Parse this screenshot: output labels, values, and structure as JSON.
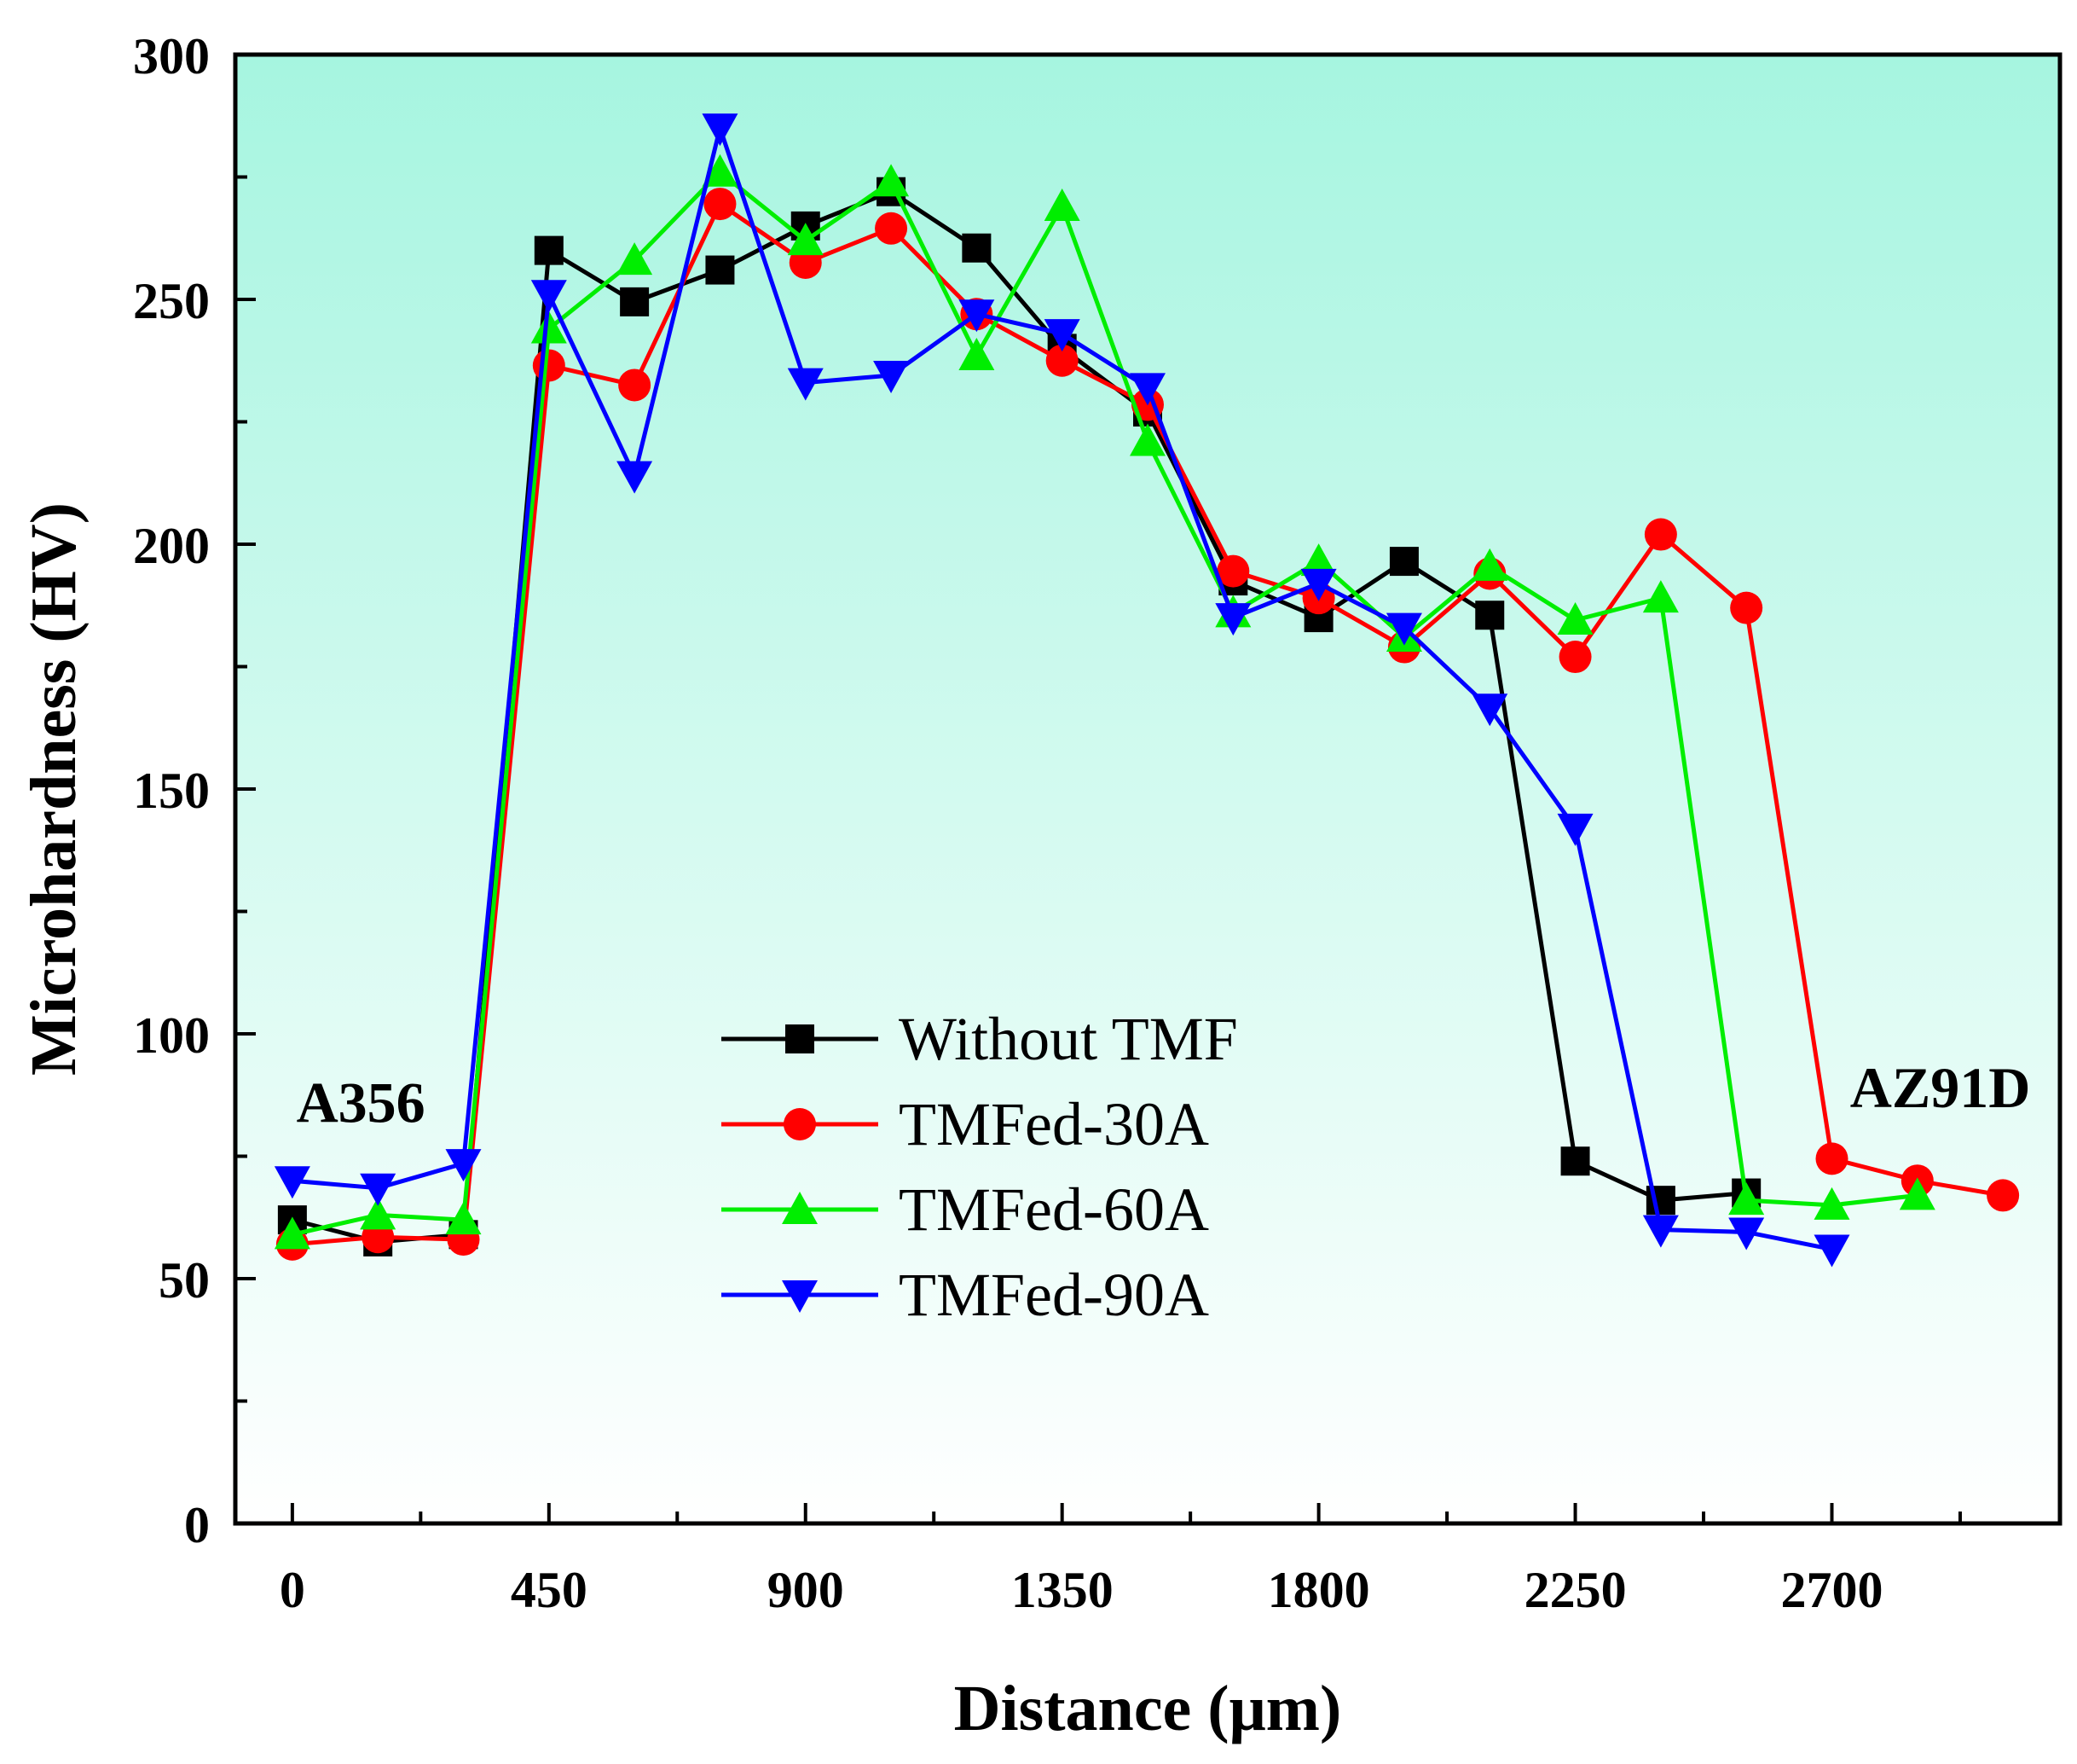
{
  "chart_data": {
    "type": "line",
    "title": "",
    "xlabel": "Distance (μm)",
    "ylabel": "Microhardness (HV)",
    "xlim": [
      -100,
      3100
    ],
    "ylim": [
      0,
      300
    ],
    "x_ticks": [
      0,
      450,
      900,
      1350,
      1800,
      2250,
      2700
    ],
    "y_ticks": [
      0,
      50,
      100,
      150,
      200,
      250,
      300
    ],
    "background_gradient": [
      "#a6f5e0",
      "#ffffff"
    ],
    "legend_position": "center-left",
    "annotations": [
      {
        "text": "A356",
        "x": 120,
        "y": 82
      },
      {
        "text": "AZ91D",
        "x": 2890,
        "y": 85
      }
    ],
    "series": [
      {
        "name": "Without TMF",
        "color": "#000000",
        "marker": "square",
        "points": [
          [
            0,
            62
          ],
          [
            150,
            57.5
          ],
          [
            300,
            59
          ],
          [
            450,
            260
          ],
          [
            600,
            249.5
          ],
          [
            750,
            256
          ],
          [
            900,
            265
          ],
          [
            1050,
            272
          ],
          [
            1200,
            260.5
          ],
          [
            1350,
            240
          ],
          [
            1500,
            227
          ],
          [
            1650,
            192.5
          ],
          [
            1800,
            185
          ],
          [
            1950,
            196.5
          ],
          [
            2100,
            185.5
          ],
          [
            2250,
            74
          ],
          [
            2400,
            66
          ],
          [
            2550,
            67.5
          ]
        ]
      },
      {
        "name": "TMFed-30A",
        "color": "#ff0000",
        "marker": "circle",
        "points": [
          [
            0,
            57
          ],
          [
            150,
            58.5
          ],
          [
            300,
            58
          ],
          [
            450,
            236.5
          ],
          [
            600,
            232.5
          ],
          [
            750,
            269.5
          ],
          [
            900,
            257.5
          ],
          [
            1050,
            264.5
          ],
          [
            1200,
            247
          ],
          [
            1350,
            237.5
          ],
          [
            1500,
            228.5
          ],
          [
            1650,
            194.5
          ],
          [
            1800,
            189
          ],
          [
            1950,
            179
          ],
          [
            2100,
            194
          ],
          [
            2250,
            177
          ],
          [
            2400,
            202
          ],
          [
            2550,
            187
          ],
          [
            2700,
            74.5
          ],
          [
            2850,
            70
          ],
          [
            3000,
            67
          ]
        ]
      },
      {
        "name": "TMFed-60A",
        "color": "#00ee00",
        "marker": "triangle-up",
        "points": [
          [
            0,
            59
          ],
          [
            150,
            63
          ],
          [
            300,
            62
          ],
          [
            450,
            244
          ],
          [
            600,
            258
          ],
          [
            750,
            276
          ],
          [
            900,
            262
          ],
          [
            1050,
            274
          ],
          [
            1200,
            238.5
          ],
          [
            1350,
            269
          ],
          [
            1500,
            221
          ],
          [
            1650,
            186
          ],
          [
            1800,
            196.5
          ],
          [
            1950,
            181
          ],
          [
            2100,
            195.5
          ],
          [
            2250,
            184.5
          ],
          [
            2400,
            189
          ],
          [
            2550,
            66
          ],
          [
            2700,
            65
          ],
          [
            2850,
            67
          ]
        ]
      },
      {
        "name": "TMFed-90A",
        "color": "#0000ff",
        "marker": "triangle-down",
        "points": [
          [
            0,
            70
          ],
          [
            150,
            68.5
          ],
          [
            300,
            73.5
          ],
          [
            450,
            251
          ],
          [
            600,
            214
          ],
          [
            750,
            285
          ],
          [
            900,
            233
          ],
          [
            1050,
            234.5
          ],
          [
            1200,
            247
          ],
          [
            1350,
            243
          ],
          [
            1500,
            232
          ],
          [
            1650,
            185
          ],
          [
            1800,
            192
          ],
          [
            1950,
            183
          ],
          [
            2100,
            166.5
          ],
          [
            2250,
            142
          ],
          [
            2400,
            60
          ],
          [
            2550,
            59.5
          ],
          [
            2700,
            56
          ]
        ]
      }
    ]
  }
}
